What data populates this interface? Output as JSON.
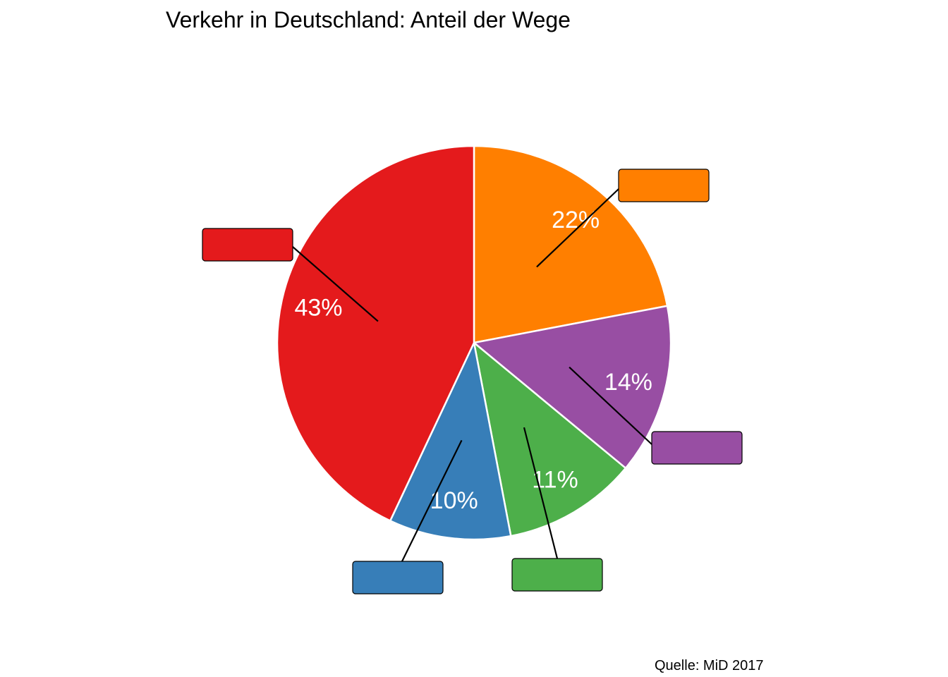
{
  "chart_data": {
    "type": "pie",
    "title": "Verkehr in Deutschland: Anteil der Wege",
    "caption": "Quelle: MiD 2017",
    "start_angle": "12 o'clock",
    "direction": "clockwise",
    "slices": [
      {
        "category": "",
        "value": 22,
        "label": "22%",
        "color": "#FF7F00"
      },
      {
        "category": "",
        "value": 14,
        "label": "14%",
        "color": "#984EA3"
      },
      {
        "category": "",
        "value": 11,
        "label": "11%",
        "color": "#4DAF4A"
      },
      {
        "category": "",
        "value": 10,
        "label": "10%",
        "color": "#377EB8"
      },
      {
        "category": "",
        "value": 43,
        "label": "43%",
        "color": "#E41A1C"
      }
    ]
  }
}
